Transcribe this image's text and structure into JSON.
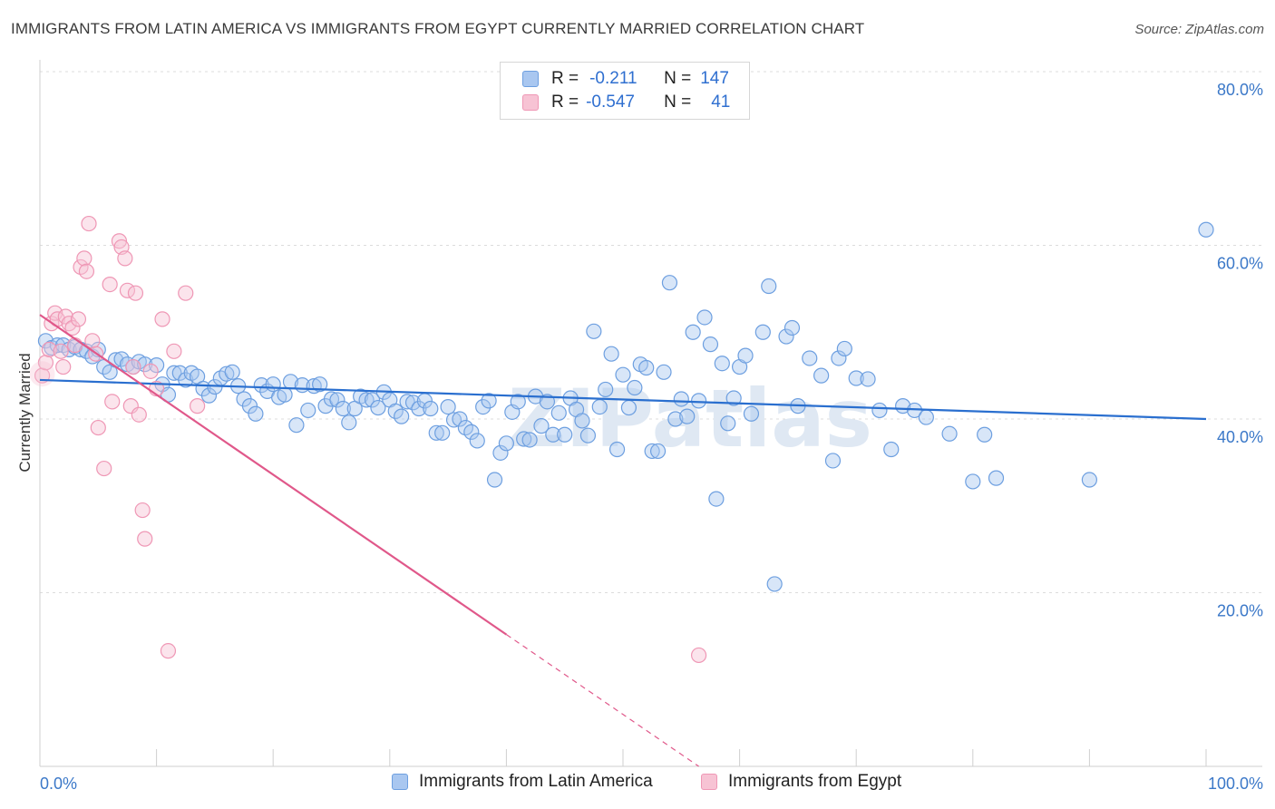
{
  "title": "IMMIGRANTS FROM LATIN AMERICA VS IMMIGRANTS FROM EGYPT CURRENTLY MARRIED CORRELATION CHART",
  "source": "Source: ZipAtlas.com",
  "watermark": "ZIPatlas",
  "colors": {
    "blue_stroke": "#6d9fe0",
    "blue_fill": "#a9c7f0",
    "blue_line": "#2a6fcf",
    "pink_stroke": "#ef97b5",
    "pink_fill": "#f7c3d4",
    "pink_line": "#e0588a",
    "tick_text": "#3b78c8",
    "grid": "#dcdcdc"
  },
  "legend": {
    "rows": [
      {
        "r_label": "R =",
        "r_value": "-0.211",
        "n_label": "N =",
        "n_value": "147"
      },
      {
        "r_label": "R =",
        "r_value": "-0.547",
        "n_label": "N =",
        "n_value": "41"
      }
    ]
  },
  "bottom_legend": {
    "blue": "Immigrants from Latin America",
    "pink": "Immigrants from Egypt"
  },
  "chart_data": {
    "type": "scatter",
    "title": "IMMIGRANTS FROM LATIN AMERICA VS IMMIGRANTS FROM EGYPT CURRENTLY MARRIED CORRELATION CHART",
    "xlabel": "",
    "ylabel": "Currently Married",
    "xlim": [
      0,
      100
    ],
    "ylim": [
      0,
      80
    ],
    "x_tick_labels": [
      "0.0%",
      "100.0%"
    ],
    "y_ticks": [
      20,
      40,
      60,
      80
    ],
    "y_tick_labels": [
      "20.0%",
      "40.0%",
      "60.0%",
      "80.0%"
    ],
    "grid": true,
    "legend_position": "top-center",
    "series": [
      {
        "name": "Immigrants from Latin America",
        "color": "blue",
        "trend": {
          "x": [
            0,
            100
          ],
          "y": [
            44.5,
            40.0
          ],
          "dashed_from": null
        },
        "points": [
          [
            0.5,
            49
          ],
          [
            1,
            48.2
          ],
          [
            1.5,
            48.5
          ],
          [
            2,
            48.5
          ],
          [
            2.5,
            48
          ],
          [
            3,
            48.3
          ],
          [
            3.5,
            48
          ],
          [
            4,
            47.8
          ],
          [
            4.5,
            47.2
          ],
          [
            5,
            48
          ],
          [
            5.5,
            46
          ],
          [
            6,
            45.4
          ],
          [
            6.5,
            46.8
          ],
          [
            7,
            46.9
          ],
          [
            7.5,
            46.3
          ],
          [
            8,
            46
          ],
          [
            8.5,
            46.6
          ],
          [
            9,
            46.3
          ],
          [
            10,
            46.2
          ],
          [
            10.5,
            44
          ],
          [
            11,
            42.8
          ],
          [
            11.5,
            45.3
          ],
          [
            12,
            45.3
          ],
          [
            12.5,
            44.5
          ],
          [
            13,
            45.3
          ],
          [
            13.5,
            44.9
          ],
          [
            14,
            43.5
          ],
          [
            14.5,
            42.7
          ],
          [
            15,
            43.7
          ],
          [
            15.5,
            44.7
          ],
          [
            16,
            45.2
          ],
          [
            16.5,
            45.4
          ],
          [
            17,
            43.8
          ],
          [
            17.5,
            42.3
          ],
          [
            18,
            41.5
          ],
          [
            18.5,
            40.6
          ],
          [
            19,
            43.9
          ],
          [
            19.5,
            43.2
          ],
          [
            20,
            44
          ],
          [
            20.5,
            42.5
          ],
          [
            21,
            42.8
          ],
          [
            21.5,
            44.3
          ],
          [
            22,
            39.3
          ],
          [
            22.5,
            43.9
          ],
          [
            23,
            41
          ],
          [
            23.5,
            43.8
          ],
          [
            24,
            44
          ],
          [
            24.5,
            41.5
          ],
          [
            25,
            42.3
          ],
          [
            25.5,
            42.2
          ],
          [
            26,
            41.2
          ],
          [
            26.5,
            39.6
          ],
          [
            27,
            41.2
          ],
          [
            27.5,
            42.6
          ],
          [
            28,
            42.2
          ],
          [
            28.5,
            42.2
          ],
          [
            29,
            41.3
          ],
          [
            29.5,
            43.1
          ],
          [
            30,
            42.2
          ],
          [
            30.5,
            40.9
          ],
          [
            31,
            40.3
          ],
          [
            31.5,
            42
          ],
          [
            32,
            41.9
          ],
          [
            32.5,
            41.2
          ],
          [
            33,
            42.1
          ],
          [
            33.5,
            41.2
          ],
          [
            34,
            38.4
          ],
          [
            34.5,
            38.4
          ],
          [
            35,
            41.4
          ],
          [
            35.5,
            39.9
          ],
          [
            36,
            40
          ],
          [
            36.5,
            39
          ],
          [
            37,
            38.5
          ],
          [
            37.5,
            37.5
          ],
          [
            38,
            41.4
          ],
          [
            38.5,
            42.1
          ],
          [
            39,
            33
          ],
          [
            39.5,
            36.1
          ],
          [
            40,
            37.2
          ],
          [
            40.5,
            40.8
          ],
          [
            41,
            42
          ],
          [
            41.5,
            37.7
          ],
          [
            42,
            37.6
          ],
          [
            42.5,
            42.6
          ],
          [
            43,
            39.2
          ],
          [
            43.5,
            42
          ],
          [
            44,
            38.2
          ],
          [
            44.5,
            40.7
          ],
          [
            45,
            38.2
          ],
          [
            45.5,
            42.4
          ],
          [
            46,
            41.1
          ],
          [
            46.5,
            39.8
          ],
          [
            47,
            38.1
          ],
          [
            47.5,
            50.1
          ],
          [
            48,
            41.4
          ],
          [
            48.5,
            43.4
          ],
          [
            49,
            47.5
          ],
          [
            49.5,
            36.5
          ],
          [
            50,
            45.1
          ],
          [
            50.5,
            41.3
          ],
          [
            51,
            43.6
          ],
          [
            51.5,
            46.3
          ],
          [
            52,
            45.9
          ],
          [
            52.5,
            36.3
          ],
          [
            53,
            36.3
          ],
          [
            53.5,
            45.4
          ],
          [
            54,
            55.7
          ],
          [
            54.5,
            40
          ],
          [
            55,
            42.3
          ],
          [
            55.5,
            40.3
          ],
          [
            56,
            50
          ],
          [
            56.5,
            42.1
          ],
          [
            57,
            51.7
          ],
          [
            57.5,
            48.6
          ],
          [
            58,
            30.8
          ],
          [
            58.5,
            46.4
          ],
          [
            59,
            39.5
          ],
          [
            59.5,
            42.4
          ],
          [
            60,
            46
          ],
          [
            60.5,
            47.3
          ],
          [
            61,
            40.6
          ],
          [
            62,
            50
          ],
          [
            62.5,
            55.3
          ],
          [
            63,
            21
          ],
          [
            64,
            49.5
          ],
          [
            64.5,
            50.5
          ],
          [
            65,
            41.5
          ],
          [
            66,
            47
          ],
          [
            67,
            45
          ],
          [
            68,
            35.2
          ],
          [
            68.5,
            47
          ],
          [
            69,
            48.1
          ],
          [
            70,
            44.7
          ],
          [
            71,
            44.6
          ],
          [
            72,
            41
          ],
          [
            73,
            36.5
          ],
          [
            74,
            41.5
          ],
          [
            75,
            41
          ],
          [
            76,
            40.2
          ],
          [
            78,
            38.3
          ],
          [
            80,
            32.8
          ],
          [
            81,
            38.2
          ],
          [
            82,
            33.2
          ],
          [
            90,
            33
          ],
          [
            100,
            61.8
          ]
        ]
      },
      {
        "name": "Immigrants from Egypt",
        "color": "pink",
        "trend": {
          "x": [
            0,
            56.5
          ],
          "y": [
            52.0,
            0
          ],
          "dashed_from": 40
        },
        "points": [
          [
            0.2,
            45
          ],
          [
            0.5,
            46.5
          ],
          [
            0.8,
            48
          ],
          [
            1,
            51
          ],
          [
            1.3,
            52.2
          ],
          [
            1.5,
            51.5
          ],
          [
            1.8,
            47.8
          ],
          [
            2,
            46
          ],
          [
            2.2,
            51.8
          ],
          [
            2.5,
            51
          ],
          [
            2.8,
            50.5
          ],
          [
            3,
            48.5
          ],
          [
            3.3,
            51.5
          ],
          [
            3.5,
            57.5
          ],
          [
            3.8,
            58.5
          ],
          [
            4,
            57
          ],
          [
            4.2,
            62.5
          ],
          [
            4.5,
            49
          ],
          [
            4.8,
            47.5
          ],
          [
            5,
            39
          ],
          [
            5.5,
            34.3
          ],
          [
            6,
            55.5
          ],
          [
            6.2,
            42
          ],
          [
            6.8,
            60.5
          ],
          [
            7,
            59.8
          ],
          [
            7.3,
            58.5
          ],
          [
            7.5,
            54.8
          ],
          [
            7.8,
            41.5
          ],
          [
            8,
            46
          ],
          [
            8.2,
            54.5
          ],
          [
            8.5,
            40.5
          ],
          [
            8.8,
            29.5
          ],
          [
            9,
            26.2
          ],
          [
            9.5,
            45.5
          ],
          [
            10,
            43.5
          ],
          [
            10.5,
            51.5
          ],
          [
            11,
            13.3
          ],
          [
            11.5,
            47.8
          ],
          [
            12.5,
            54.5
          ],
          [
            13.5,
            41.5
          ],
          [
            56.5,
            12.8
          ]
        ]
      }
    ]
  }
}
